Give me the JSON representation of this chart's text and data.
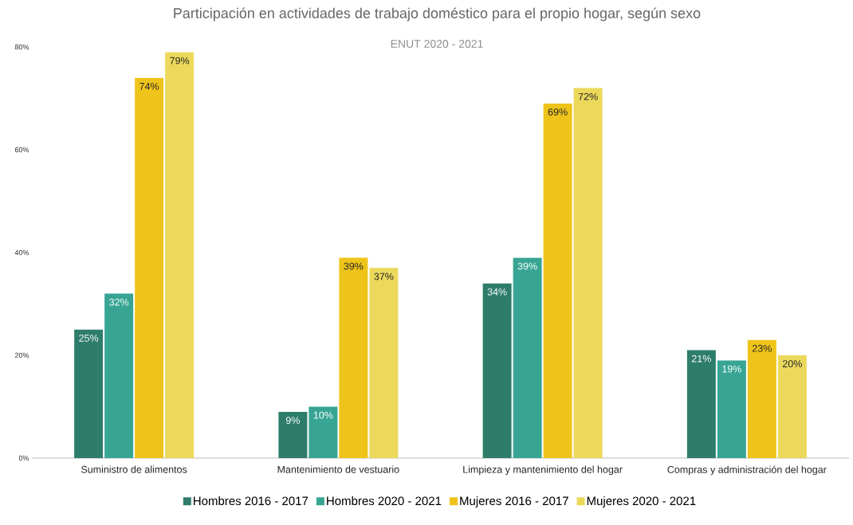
{
  "chart_data": {
    "type": "bar",
    "title": "Participación en actividades de trabajo doméstico para el propio hogar, según sexo",
    "subtitle": "ENUT 2020 - 2021",
    "categories": [
      "Suministro de alimentos",
      "Mantenimiento de vestuario",
      "Limpieza y mantenimiento del hogar",
      "Compras y administración del hogar"
    ],
    "series": [
      {
        "name": "Hombres 2016 - 2017",
        "color": "#2e7d6b",
        "values": [
          25,
          9,
          34,
          21
        ],
        "value_labels": [
          "25%",
          "9%",
          "34%",
          "21%"
        ]
      },
      {
        "name": "Hombres 2020 - 2021",
        "color": "#38a594",
        "values": [
          32,
          10,
          39,
          19
        ],
        "value_labels": [
          "32%",
          "10%",
          "39%",
          "19%"
        ]
      },
      {
        "name": "Mujeres 2016 - 2017",
        "color": "#efc41a",
        "values": [
          74,
          39,
          69,
          23
        ],
        "value_labels": [
          "74%",
          "39%",
          "69%",
          "23%"
        ]
      },
      {
        "name": "Mujeres 2020 - 2021",
        "color": "#ecd95b",
        "values": [
          79,
          37,
          72,
          20
        ],
        "value_labels": [
          "79%",
          "37%",
          "72%",
          "20%"
        ]
      }
    ],
    "ylim": [
      0,
      80
    ],
    "yticks": [
      {
        "value": 0,
        "label": "0%"
      },
      {
        "value": 20,
        "label": "20%"
      },
      {
        "value": 40,
        "label": "40%"
      },
      {
        "value": 60,
        "label": "60%"
      },
      {
        "value": 80,
        "label": "80%"
      }
    ],
    "grid": false,
    "legend": "bottom"
  }
}
